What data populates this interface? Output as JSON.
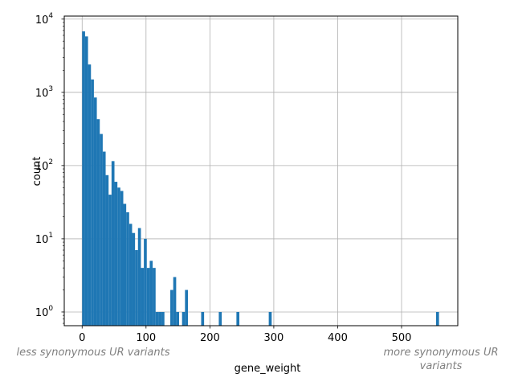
{
  "chart_data": {
    "type": "bar",
    "subtype": "histogram",
    "title": "",
    "xlabel": "gene_weight",
    "ylabel": "count",
    "yscale": "log",
    "xlim": [
      -28,
      588
    ],
    "ylim": [
      0.65,
      11000
    ],
    "grid": true,
    "bar_color": "#1f77b4",
    "bin_width": 4.6,
    "x_ticks": [
      0,
      100,
      200,
      300,
      400,
      500
    ],
    "x_tick_labels": [
      "0",
      "100",
      "200",
      "300",
      "400",
      "500"
    ],
    "y_ticks": [
      {
        "value": 1,
        "base": "10",
        "exp": "0"
      },
      {
        "value": 10,
        "base": "10",
        "exp": "1"
      },
      {
        "value": 100,
        "base": "10",
        "exp": "2"
      },
      {
        "value": 1000,
        "base": "10",
        "exp": "3"
      },
      {
        "value": 10000,
        "base": "10",
        "exp": "4"
      }
    ],
    "bins": [
      {
        "x": 0.0,
        "count": 6800
      },
      {
        "x": 4.6,
        "count": 5800
      },
      {
        "x": 9.2,
        "count": 2400
      },
      {
        "x": 13.8,
        "count": 1500
      },
      {
        "x": 18.4,
        "count": 850
      },
      {
        "x": 23.0,
        "count": 430
      },
      {
        "x": 27.6,
        "count": 270
      },
      {
        "x": 32.2,
        "count": 155
      },
      {
        "x": 36.8,
        "count": 74
      },
      {
        "x": 41.4,
        "count": 40
      },
      {
        "x": 46.0,
        "count": 115
      },
      {
        "x": 50.6,
        "count": 60
      },
      {
        "x": 55.2,
        "count": 50
      },
      {
        "x": 59.8,
        "count": 45
      },
      {
        "x": 64.4,
        "count": 30
      },
      {
        "x": 69.0,
        "count": 23
      },
      {
        "x": 73.6,
        "count": 16
      },
      {
        "x": 78.2,
        "count": 12
      },
      {
        "x": 82.8,
        "count": 7
      },
      {
        "x": 87.4,
        "count": 14
      },
      {
        "x": 92.0,
        "count": 4
      },
      {
        "x": 96.6,
        "count": 10
      },
      {
        "x": 101.2,
        "count": 4
      },
      {
        "x": 105.8,
        "count": 5
      },
      {
        "x": 110.4,
        "count": 4
      },
      {
        "x": 115.0,
        "count": 1
      },
      {
        "x": 119.6,
        "count": 1
      },
      {
        "x": 124.2,
        "count": 1
      },
      {
        "x": 138.0,
        "count": 2
      },
      {
        "x": 142.6,
        "count": 3
      },
      {
        "x": 147.2,
        "count": 1
      },
      {
        "x": 156.4,
        "count": 1
      },
      {
        "x": 161.0,
        "count": 2
      },
      {
        "x": 186.3,
        "count": 1
      },
      {
        "x": 213.9,
        "count": 1
      },
      {
        "x": 241.5,
        "count": 1
      },
      {
        "x": 292.1,
        "count": 1
      },
      {
        "x": 554.0,
        "count": 1
      }
    ],
    "annotations": {
      "left": [
        "less synonymous UR variants"
      ],
      "right": [
        "more synonymous UR",
        "variants"
      ]
    }
  }
}
